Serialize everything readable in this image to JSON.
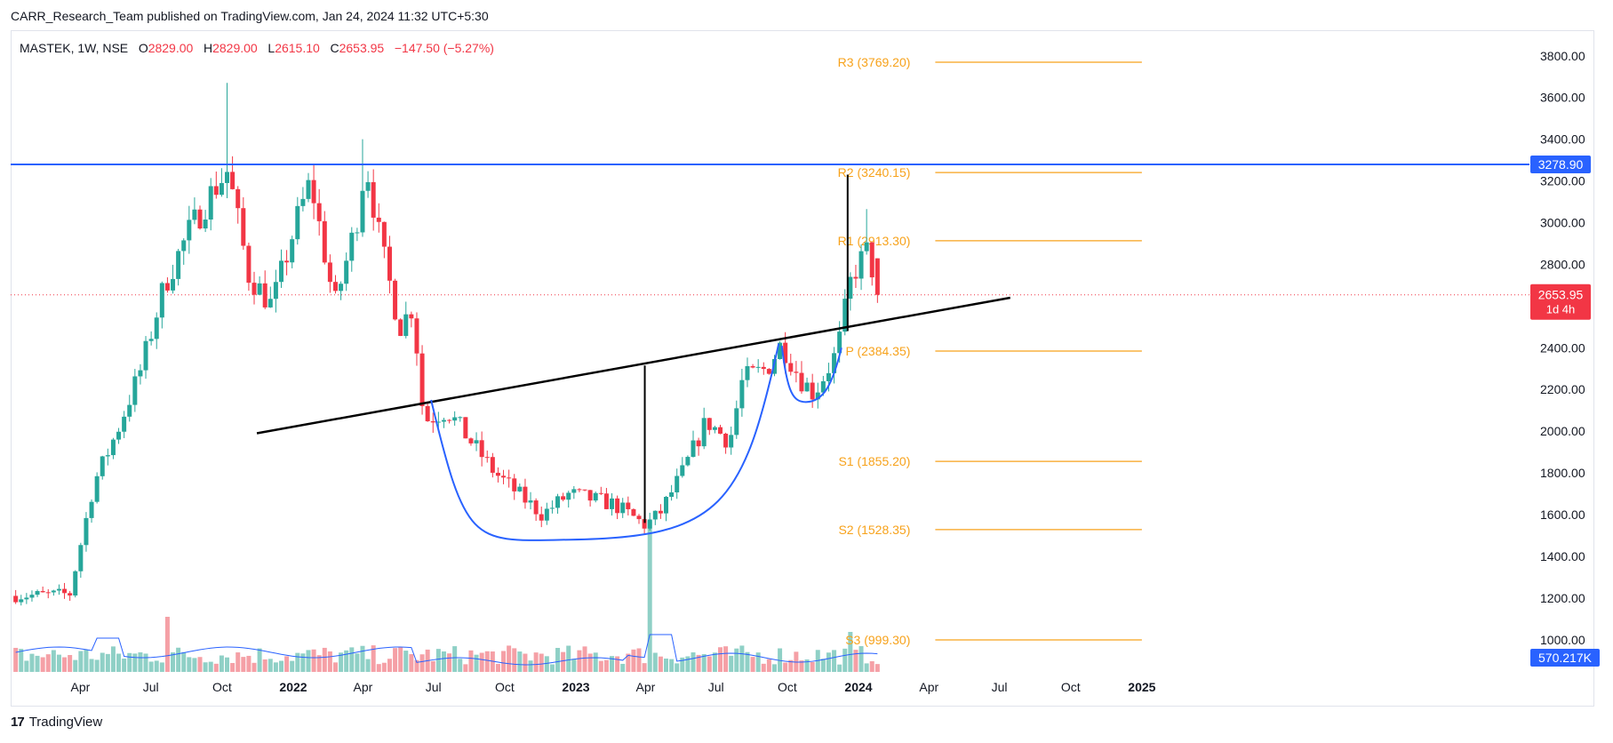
{
  "header": {
    "publisher": "CARR_Research_Team published on TradingView.com, Jan 24, 2024 11:32 UTC+5:30"
  },
  "legend": {
    "symbol": "MASTEK, 1W, NSE",
    "o_label": "O",
    "o_value": "2829.00",
    "h_label": "H",
    "h_value": "2829.00",
    "l_label": "L",
    "l_value": "2615.10",
    "c_label": "C",
    "c_value": "2653.95",
    "change": "−147.50 (−5.27%)"
  },
  "footer": {
    "brand": "TradingView",
    "logo_icon": "tradingview-logo-icon"
  },
  "colors": {
    "up": "#26a69a",
    "down": "#f23645",
    "vol_up": "#8fd0c6",
    "vol_down": "#f5a0a6",
    "pivot": "#f7a21b",
    "resistance_line": "#2962ff",
    "cup": "#2962ff",
    "trend": "#000000"
  },
  "chart_data": {
    "type": "candlestick",
    "title": "",
    "price_axis": {
      "ticks": [
        "3800.00",
        "3600.00",
        "3400.00",
        "3200.00",
        "3000.00",
        "2800.00",
        "2600.00",
        "2400.00",
        "2200.00",
        "2000.00",
        "1800.00",
        "1600.00",
        "1400.00",
        "1200.00",
        "1000.00"
      ],
      "range": [
        960,
        3900
      ]
    },
    "time_axis": {
      "labels": [
        {
          "text": "Apr",
          "date": "2021-04-01",
          "bold": false
        },
        {
          "text": "Jul",
          "date": "2021-07-01",
          "bold": false
        },
        {
          "text": "Oct",
          "date": "2021-10-01",
          "bold": false
        },
        {
          "text": "2022",
          "date": "2022-01-01",
          "bold": true
        },
        {
          "text": "Apr",
          "date": "2022-04-01",
          "bold": false
        },
        {
          "text": "Jul",
          "date": "2022-07-01",
          "bold": false
        },
        {
          "text": "Oct",
          "date": "2022-10-01",
          "bold": false
        },
        {
          "text": "2023",
          "date": "2023-01-01",
          "bold": true
        },
        {
          "text": "Apr",
          "date": "2023-04-01",
          "bold": false
        },
        {
          "text": "Jul",
          "date": "2023-07-01",
          "bold": false
        },
        {
          "text": "Oct",
          "date": "2023-10-01",
          "bold": false
        },
        {
          "text": "2024",
          "date": "2024-01-01",
          "bold": true
        },
        {
          "text": "Apr",
          "date": "2024-04-01",
          "bold": false
        },
        {
          "text": "Jul",
          "date": "2024-07-01",
          "bold": false
        },
        {
          "text": "Oct",
          "date": "2024-10-01",
          "bold": false
        },
        {
          "text": "2025",
          "date": "2025-01-01",
          "bold": true
        }
      ]
    },
    "anchors": {
      "first_date": "2021-01-01",
      "waypoints": [
        {
          "date": "2021-01-01",
          "price": 1210
        },
        {
          "date": "2021-03-15",
          "price": 1220
        },
        {
          "date": "2021-04-15",
          "price": 1750
        },
        {
          "date": "2021-05-15",
          "price": 2000
        },
        {
          "date": "2021-06-15",
          "price": 2300
        },
        {
          "date": "2021-07-15",
          "price": 2700
        },
        {
          "date": "2021-08-15",
          "price": 2950
        },
        {
          "date": "2021-09-15",
          "price": 3150
        },
        {
          "date": "2021-10-05",
          "price": 3250
        },
        {
          "date": "2021-11-01",
          "price": 2750
        },
        {
          "date": "2021-12-01",
          "price": 2600
        },
        {
          "date": "2022-01-01",
          "price": 3000
        },
        {
          "date": "2022-01-20",
          "price": 3200
        },
        {
          "date": "2022-02-20",
          "price": 2600
        },
        {
          "date": "2022-03-20",
          "price": 3000
        },
        {
          "date": "2022-04-01",
          "price": 3300
        },
        {
          "date": "2022-04-20",
          "price": 2900
        },
        {
          "date": "2022-05-15",
          "price": 2500
        },
        {
          "date": "2022-06-01",
          "price": 2600
        },
        {
          "date": "2022-06-15",
          "price": 2050
        },
        {
          "date": "2022-07-15",
          "price": 2100
        },
        {
          "date": "2022-08-15",
          "price": 1950
        },
        {
          "date": "2022-09-15",
          "price": 1800
        },
        {
          "date": "2022-10-15",
          "price": 1700
        },
        {
          "date": "2022-11-15",
          "price": 1600
        },
        {
          "date": "2022-12-20",
          "price": 1700
        },
        {
          "date": "2023-02-15",
          "price": 1650
        },
        {
          "date": "2023-03-28",
          "price": 1550
        },
        {
          "date": "2023-04-15",
          "price": 1600
        },
        {
          "date": "2023-05-15",
          "price": 1800
        },
        {
          "date": "2023-06-15",
          "price": 2050
        },
        {
          "date": "2023-07-15",
          "price": 1950
        },
        {
          "date": "2023-08-01",
          "price": 2250
        },
        {
          "date": "2023-09-01",
          "price": 2300
        },
        {
          "date": "2023-09-20",
          "price": 2420
        },
        {
          "date": "2023-10-15",
          "price": 2250
        },
        {
          "date": "2023-11-01",
          "price": 2180
        },
        {
          "date": "2023-12-01",
          "price": 2380
        },
        {
          "date": "2023-12-20",
          "price": 2750
        },
        {
          "date": "2024-01-10",
          "price": 2870
        },
        {
          "date": "2024-01-22",
          "price": 2654
        }
      ]
    },
    "volume": {
      "last": "570.217K"
    },
    "series": [],
    "levels": [
      {
        "label": "R3 (3769.20)",
        "price": 3769.2
      },
      {
        "label": "R2 (3240.15)",
        "price": 3240.15
      },
      {
        "label": "R1 (2913.30)",
        "price": 2913.3
      },
      {
        "label": "P (2384.35)",
        "price": 2384.35
      },
      {
        "label": "S1 (1855.20)",
        "price": 1855.2
      },
      {
        "label": "S2 (1528.35)",
        "price": 1528.35
      },
      {
        "label": "S3 (999.30)",
        "price": 999.3
      }
    ],
    "levels_range": {
      "start": "2023-10-20",
      "end": "2025-01-01"
    },
    "horizontal_resistance": {
      "price": 3278.9,
      "label": "3278.90"
    },
    "last_price": {
      "price": 2653.95,
      "label": "2653.95",
      "countdown": "1d 4h"
    },
    "trendline": {
      "start": {
        "date": "2021-11-15",
        "price": 1990
      },
      "end": {
        "date": "2024-07-15",
        "price": 2640
      }
    },
    "target_lines": [
      {
        "date": "2023-03-31",
        "from": 1560,
        "to": 2315
      },
      {
        "date": "2023-12-18",
        "from": 2480,
        "to": 3230
      }
    ],
    "cup": {
      "start": {
        "date": "2022-06-28",
        "price": 2150
      },
      "bottom": {
        "date": "2022-12-25",
        "price": 1480
      },
      "end": {
        "date": "2023-09-20",
        "price": 2420
      }
    },
    "handle": {
      "start": {
        "date": "2023-09-24",
        "price": 2410
      },
      "bottom": {
        "date": "2023-10-25",
        "price": 2140
      },
      "end": {
        "date": "2023-12-10",
        "price": 2400
      }
    }
  }
}
